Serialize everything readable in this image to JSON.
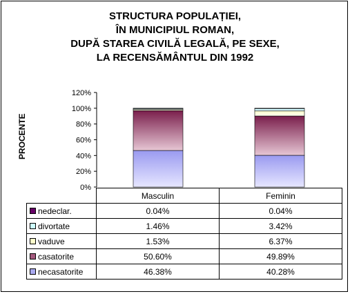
{
  "chart_data": {
    "type": "bar",
    "stacked": true,
    "title": [
      "STRUCTURA POPULAȚIEI,",
      "ÎN MUNICIPIUL ROMAN,",
      "DUPĂ STAREA CIVILĂ LEGALĂ, PE SEXE,",
      "LA RECENSĂMÂNTUL DIN 1992"
    ],
    "ylabel": "PROCENTE",
    "ylim": [
      0,
      120
    ],
    "yticks": [
      "0%",
      "20%",
      "40%",
      "60%",
      "80%",
      "100%",
      "120%"
    ],
    "categories": [
      "Masculin",
      "Feminin"
    ],
    "series": [
      {
        "name": "necasatorite",
        "values": [
          46.38,
          40.28
        ],
        "labels": [
          "46.38%",
          "40.28%"
        ],
        "color": "#aaaaf0"
      },
      {
        "name": "casatorite",
        "values": [
          50.6,
          49.89
        ],
        "labels": [
          "50.60%",
          "49.89%"
        ],
        "color": "#a45a7e"
      },
      {
        "name": "vaduve",
        "values": [
          1.53,
          6.37
        ],
        "labels": [
          "1.53%",
          "6.37%"
        ],
        "color": "#ffffcc"
      },
      {
        "name": "divortate",
        "values": [
          1.46,
          3.42
        ],
        "labels": [
          "1.46%",
          "3.42%"
        ],
        "color": "#ccffff"
      },
      {
        "name": "nedeclar.",
        "values": [
          0.04,
          0.04
        ],
        "labels": [
          "0.04%",
          "0.04%"
        ],
        "color": "#660066"
      }
    ],
    "table_row_order": [
      "nedeclar.",
      "divortate",
      "vaduve",
      "casatorite",
      "necasatorite"
    ],
    "grid": false,
    "legend": "data-table"
  }
}
